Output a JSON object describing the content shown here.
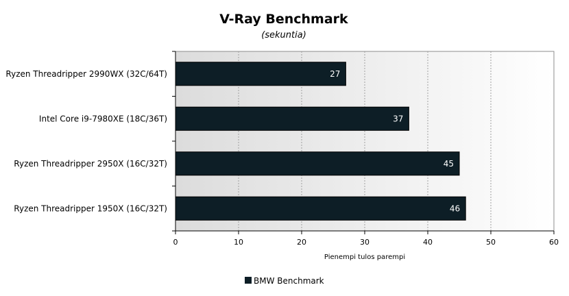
{
  "chart_data": {
    "type": "bar",
    "orientation": "horizontal",
    "title": "V-Ray Benchmark",
    "subtitle": "(sekuntia)",
    "xlabel": "Pienempi tulos parempi",
    "categories": [
      "Ryzen Threadripper 2990WX (32C/64T)",
      "Intel Core i9-7980XE (18C/36T)",
      "Ryzen Threadripper 2950X (16C/32T)",
      "Ryzen Threadripper 1950X (16C/32T)"
    ],
    "series": [
      {
        "name": "BMW Benchmark",
        "values": [
          27,
          37,
          45,
          46
        ],
        "color": "#0d1e26"
      }
    ],
    "xlim": [
      0,
      60
    ],
    "xticks": [
      0,
      10,
      20,
      30,
      40,
      50,
      60
    ],
    "grid": true,
    "legend_position": "bottom",
    "colors": {
      "bar": "#0d1e26",
      "plot_gradient_start": "#dcdcdc",
      "plot_gradient_end": "#ffffff",
      "grid": "#a0a0a0"
    }
  }
}
